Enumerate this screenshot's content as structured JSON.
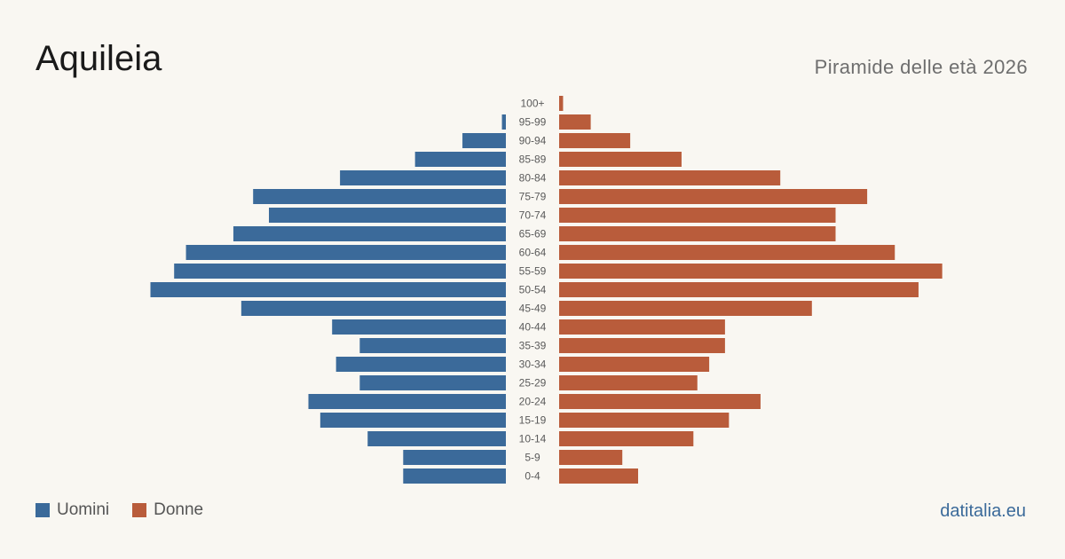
{
  "header": {
    "title": "Aquileia",
    "subtitle": "Piramide delle età 2026"
  },
  "legend": {
    "male_label": "Uomini",
    "female_label": "Donne"
  },
  "footer": {
    "source": "datitalia.eu"
  },
  "colors": {
    "male": "#3b6a9a",
    "female": "#b95c3b",
    "source": "#3b6a9a"
  },
  "chart_data": {
    "type": "bar",
    "orientation": "horizontal",
    "layout": "population-pyramid",
    "categories": [
      "100+",
      "95-99",
      "90-94",
      "85-89",
      "80-84",
      "75-79",
      "70-74",
      "65-69",
      "60-64",
      "55-59",
      "50-54",
      "45-49",
      "40-44",
      "35-39",
      "30-34",
      "25-29",
      "20-24",
      "15-19",
      "10-14",
      "5-9",
      "0-4"
    ],
    "series": [
      {
        "name": "Uomini",
        "values": [
          0,
          1,
          11,
          23,
          42,
          64,
          60,
          69,
          81,
          84,
          90,
          67,
          44,
          37,
          43,
          37,
          50,
          47,
          35,
          26,
          26
        ]
      },
      {
        "name": "Donne",
        "values": [
          1,
          8,
          18,
          31,
          56,
          78,
          70,
          70,
          85,
          97,
          91,
          64,
          42,
          42,
          38,
          35,
          51,
          43,
          34,
          16,
          20
        ]
      }
    ],
    "xlim": [
      0,
      100
    ],
    "axes_visible": false,
    "grid": false,
    "legend": "bottom-left"
  }
}
